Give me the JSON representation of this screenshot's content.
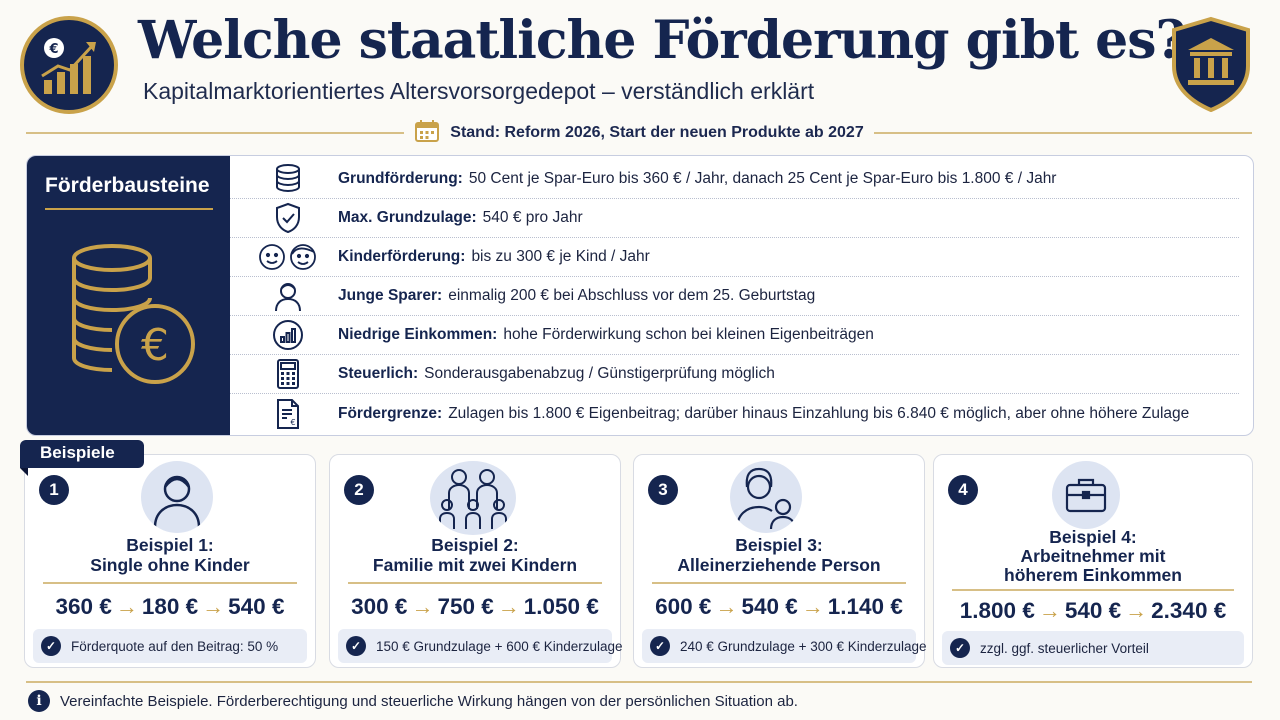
{
  "header": {
    "title": "Welche staatliche Förderung gibt es?",
    "subtitle": "Kapitalmarktorientiertes Altersvorsorgedepot – verständlich erklärt",
    "stand": "Stand: Reform 2026, Start der neuen Produkte ab 2027"
  },
  "panel": {
    "title": "Förderbausteine",
    "rows": [
      {
        "label": "Grundförderung:",
        "text": "50 Cent je Spar-Euro bis 360 € / Jahr, danach 25 Cent je Spar-Euro bis 1.800 € / Jahr",
        "icon": "coins-stack-icon"
      },
      {
        "label": "Max. Grundzulage:",
        "text": "540 € pro Jahr",
        "icon": "shield-check-icon"
      },
      {
        "label": "Kinderförderung:",
        "text": "bis zu 300 € je Kind / Jahr",
        "icon": "children-icon"
      },
      {
        "label": "Junge Sparer:",
        "text": "einmalig 200 € bei Abschluss vor dem 25. Geburtstag",
        "icon": "young-person-icon"
      },
      {
        "label": "Niedrige Einkommen:",
        "text": "hohe Förderwirkung schon bei kleinen Eigenbeiträgen",
        "icon": "bar-chart-icon"
      },
      {
        "label": "Steuerlich:",
        "text": "Sonderausgabenabzug / Günstigerprüfung möglich",
        "icon": "calculator-icon"
      },
      {
        "label": "Fördergrenze:",
        "text": "Zulagen bis 1.800 € Eigenbeitrag; darüber hinaus Einzahlung bis 6.840 € möglich, aber ohne höhere Zulage",
        "icon": "document-euro-icon"
      }
    ]
  },
  "examples": {
    "tag": "Beispiele",
    "cards": [
      {
        "num": "1",
        "title1": "Beispiel 1:",
        "title2": "Single ohne Kinder",
        "title3": "",
        "v1": "360 €",
        "v2": "180 €",
        "v3": "540 €",
        "note": "Förderquote auf den Beitrag: 50 %"
      },
      {
        "num": "2",
        "title1": "Beispiel 2:",
        "title2": "Familie mit zwei Kindern",
        "title3": "",
        "v1": "300 €",
        "v2": "750 €",
        "v3": "1.050 €",
        "note": "150 € Grundzulage + 600 € Kinderzulage"
      },
      {
        "num": "3",
        "title1": "Beispiel 3:",
        "title2": "Alleinerziehende Person",
        "title3": "",
        "v1": "600 €",
        "v2": "540 €",
        "v3": "1.140 €",
        "note": "240 € Grundzulage + 300 € Kinderzulage"
      },
      {
        "num": "4",
        "title1": "Beispiel 4:",
        "title2": "Arbeitnehmer mit",
        "title3": "höherem Einkommen",
        "v1": "1.800 €",
        "v2": "540 €",
        "v3": "2.340 €",
        "note": "zzgl. ggf. steuerlicher Vorteil"
      }
    ]
  },
  "footer": {
    "text": "Vereinfachte Beispiele. Förderberechtigung und steuerliche Wirkung hängen von der persönlichen Situation ab."
  },
  "colors": {
    "navy": "#15254f",
    "gold": "#c9a24a",
    "background": "#fbfaf6"
  }
}
